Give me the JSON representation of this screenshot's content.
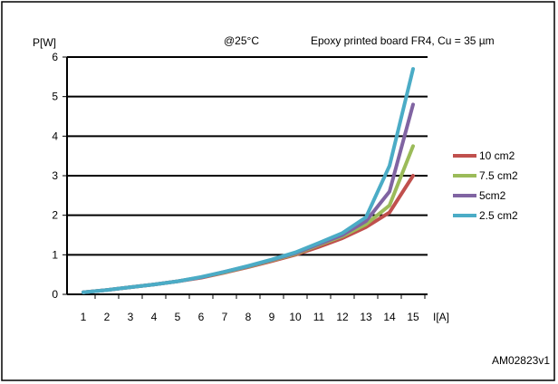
{
  "figure": {
    "ylabel_top": "P[W]",
    "temperature_note": "@25°C",
    "board_note": "Epoxy printed board FR4, Cu = 35 µm",
    "xlabel_right": "I[A]",
    "figure_id": "AM02823v1"
  },
  "chart_data": {
    "type": "line",
    "title": "",
    "xlabel": "I[A]",
    "ylabel": "P[W]",
    "x": [
      1,
      2,
      3,
      4,
      5,
      6,
      7,
      8,
      9,
      10,
      11,
      12,
      13,
      14,
      15
    ],
    "xlim": [
      1,
      15
    ],
    "ylim": [
      0,
      6
    ],
    "yticks": [
      0,
      1,
      2,
      3,
      4,
      5,
      6
    ],
    "grid": "horizontal",
    "legend_position": "right",
    "series": [
      {
        "name": "10 cm2",
        "color": "#c0504d",
        "values": [
          0.05,
          0.11,
          0.18,
          0.25,
          0.33,
          0.42,
          0.55,
          0.69,
          0.84,
          1.0,
          1.2,
          1.42,
          1.7,
          2.07,
          3.0
        ]
      },
      {
        "name": "7.5 cm2",
        "color": "#9bbb59",
        "values": [
          0.05,
          0.11,
          0.18,
          0.25,
          0.33,
          0.43,
          0.56,
          0.7,
          0.86,
          1.02,
          1.25,
          1.47,
          1.77,
          2.25,
          3.75
        ]
      },
      {
        "name": "5cm2",
        "color": "#8064a2",
        "values": [
          0.05,
          0.11,
          0.18,
          0.25,
          0.33,
          0.43,
          0.57,
          0.71,
          0.87,
          1.04,
          1.27,
          1.5,
          1.85,
          2.6,
          4.8
        ]
      },
      {
        "name": "2.5 cm2",
        "color": "#4bacc6",
        "values": [
          0.05,
          0.11,
          0.18,
          0.25,
          0.33,
          0.44,
          0.57,
          0.72,
          0.88,
          1.06,
          1.3,
          1.55,
          1.95,
          3.25,
          5.7
        ]
      }
    ]
  }
}
